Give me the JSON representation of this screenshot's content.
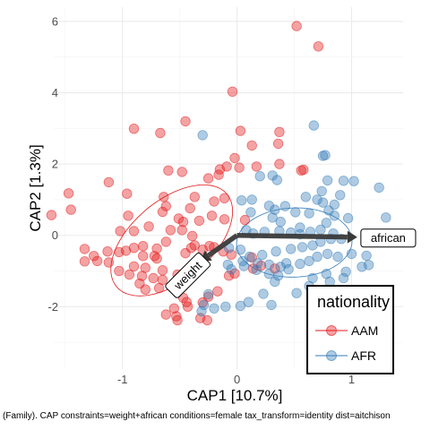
{
  "chart_data": {
    "type": "scatter",
    "title": "",
    "xlabel": "CAP1 [10.7%]",
    "ylabel": "CAP2 [1.3%]",
    "xlim": [
      -1.6,
      1.45
    ],
    "ylim": [
      -3.75,
      6.4
    ],
    "x_ticks": [
      -1,
      0,
      1
    ],
    "x_tick_labels": [
      "-1",
      "0",
      "1"
    ],
    "y_ticks": [
      -2,
      0,
      2,
      4,
      6
    ],
    "y_tick_labels": [
      "-2",
      "0",
      "2",
      "4",
      "6"
    ],
    "grid": true,
    "legend": {
      "title": "nationality",
      "placement": "right-bottom"
    },
    "series": [
      {
        "name": "AAM",
        "color": "#e41a1c",
        "points": [
          [
            0.52,
            5.87
          ],
          [
            0.71,
            5.3
          ],
          [
            -0.04,
            4.03
          ],
          [
            -0.9,
            2.99
          ],
          [
            -0.45,
            3.2
          ],
          [
            -0.67,
            2.87
          ],
          [
            0.03,
            2.93
          ],
          [
            0.37,
            2.9
          ],
          [
            0.36,
            2.57
          ],
          [
            0.13,
            2.52
          ],
          [
            -0.02,
            2.17
          ],
          [
            0.37,
            2.0
          ],
          [
            0.02,
            1.9
          ],
          [
            0.17,
            1.93
          ],
          [
            -0.15,
            1.85
          ],
          [
            -0.16,
            1.7
          ],
          [
            -0.48,
            1.78
          ],
          [
            0.58,
            1.84
          ],
          [
            0.56,
            1.82
          ],
          [
            -0.09,
            1.93
          ],
          [
            -0.6,
            1.82
          ],
          [
            -0.25,
            1.6
          ],
          [
            -1.12,
            1.49
          ],
          [
            -0.96,
            1.17
          ],
          [
            -1.47,
            1.18
          ],
          [
            -1.45,
            0.72
          ],
          [
            -1.62,
            0.57
          ],
          [
            -0.64,
            1.08
          ],
          [
            -0.95,
            0.55
          ],
          [
            -0.37,
            1.08
          ],
          [
            -0.11,
            1.04
          ],
          [
            -0.2,
            0.95
          ],
          [
            -0.62,
            0.82
          ],
          [
            -0.41,
            0.76
          ],
          [
            -0.65,
            0.66
          ],
          [
            -0.51,
            0.47
          ],
          [
            -0.47,
            0.38
          ],
          [
            -0.22,
            0.55
          ],
          [
            -0.11,
            0.45
          ],
          [
            0.07,
            0.43
          ],
          [
            -0.33,
            0.41
          ],
          [
            -0.77,
            0.25
          ],
          [
            -0.9,
            0.12
          ],
          [
            -1.02,
            0.12
          ],
          [
            -0.58,
            0.15
          ],
          [
            -0.48,
            0.15
          ],
          [
            -0.39,
            -0.02
          ],
          [
            -0.62,
            -0.18
          ],
          [
            -1.33,
            -0.38
          ],
          [
            -1.25,
            -0.58
          ],
          [
            -1.13,
            -0.45
          ],
          [
            -1.03,
            -0.47
          ],
          [
            -0.97,
            -0.43
          ],
          [
            -0.9,
            -0.35
          ],
          [
            -0.82,
            -0.3
          ],
          [
            -0.7,
            -0.37
          ],
          [
            -0.45,
            -0.5
          ],
          [
            -0.4,
            -0.35
          ],
          [
            -0.3,
            -0.4
          ],
          [
            -0.37,
            -0.28
          ],
          [
            -0.24,
            -0.3
          ],
          [
            -0.2,
            -0.33
          ],
          [
            -0.12,
            -0.45
          ],
          [
            -0.05,
            -0.54
          ],
          [
            -0.82,
            -0.58
          ],
          [
            -0.72,
            -0.58
          ],
          [
            -0.7,
            -0.65
          ],
          [
            -1.22,
            -0.72
          ],
          [
            -1.12,
            -0.76
          ],
          [
            -0.9,
            -0.87
          ],
          [
            -0.8,
            -0.91
          ],
          [
            -0.65,
            -0.98
          ],
          [
            -0.52,
            -1.1
          ],
          [
            -1.03,
            -1.0
          ],
          [
            -0.94,
            -1.1
          ],
          [
            -0.83,
            -1.14
          ],
          [
            -0.73,
            -1.2
          ],
          [
            -0.65,
            -1.25
          ],
          [
            -0.85,
            -1.35
          ],
          [
            -0.8,
            -1.52
          ],
          [
            -0.68,
            -1.48
          ],
          [
            -0.47,
            -1.75
          ],
          [
            -0.55,
            -2.05
          ],
          [
            -0.43,
            -2.0
          ],
          [
            -0.25,
            -1.72
          ],
          [
            -0.3,
            -1.88
          ],
          [
            -0.17,
            -1.57
          ],
          [
            -0.02,
            -1.07
          ],
          [
            -0.07,
            -1.13
          ],
          [
            0.13,
            -0.62
          ],
          [
            0.21,
            -0.85
          ],
          [
            0.33,
            -0.93
          ],
          [
            0.14,
            -0.93
          ],
          [
            -0.62,
            -2.22
          ],
          [
            -0.53,
            -2.27
          ],
          [
            -0.52,
            -2.38
          ],
          [
            -0.32,
            -2.32
          ],
          [
            -0.26,
            -2.38
          ],
          [
            -0.44,
            -1.87
          ],
          [
            -1.33,
            -0.73
          ]
        ]
      },
      {
        "name": "AFR",
        "color": "#377eb8",
        "points": [
          [
            0.67,
            3.08
          ],
          [
            -0.3,
            2.81
          ],
          [
            0.75,
            2.23
          ],
          [
            0.77,
            2.25
          ],
          [
            0.31,
            1.68
          ],
          [
            0.2,
            1.66
          ],
          [
            0.35,
            1.55
          ],
          [
            0.79,
            1.54
          ],
          [
            0.93,
            1.53
          ],
          [
            1.02,
            1.52
          ],
          [
            1.24,
            1.34
          ],
          [
            0.74,
            1.24
          ],
          [
            0.9,
            1.13
          ],
          [
            0.6,
            1.08
          ],
          [
            0.7,
            1.0
          ],
          [
            0.75,
            0.92
          ],
          [
            0.85,
            0.86
          ],
          [
            0.42,
            0.82
          ],
          [
            0.28,
            0.83
          ],
          [
            0.33,
            0.72
          ],
          [
            0.13,
            1.0
          ],
          [
            0.04,
            0.98
          ],
          [
            0.12,
            0.65
          ],
          [
            0.31,
            0.5
          ],
          [
            0.38,
            0.38
          ],
          [
            0.51,
            0.65
          ],
          [
            0.63,
            0.62
          ],
          [
            0.85,
            0.55
          ],
          [
            0.97,
            0.48
          ],
          [
            0.78,
            0.35
          ],
          [
            1.3,
            0.5
          ],
          [
            0.08,
            0.15
          ],
          [
            0.14,
            0.05
          ],
          [
            0.24,
            0.1
          ],
          [
            0.37,
            0.12
          ],
          [
            0.47,
            0.08
          ],
          [
            0.55,
            0.03
          ],
          [
            0.64,
            0.1
          ],
          [
            0.73,
            0.16
          ],
          [
            0.84,
            0.05
          ],
          [
            0.82,
            -0.1
          ],
          [
            0.91,
            -0.1
          ],
          [
            0.73,
            -0.18
          ],
          [
            0.66,
            -0.28
          ],
          [
            0.57,
            -0.33
          ],
          [
            0.47,
            -0.38
          ],
          [
            0.34,
            -0.45
          ],
          [
            0.22,
            -0.55
          ],
          [
            0.11,
            -0.6
          ],
          [
            0.03,
            -0.4
          ],
          [
            -0.07,
            -0.35
          ],
          [
            0.05,
            -0.72
          ],
          [
            0.18,
            -0.78
          ],
          [
            0.28,
            -0.82
          ],
          [
            0.38,
            -0.88
          ],
          [
            0.45,
            -0.95
          ],
          [
            0.55,
            -0.8
          ],
          [
            0.63,
            -0.72
          ],
          [
            0.7,
            -0.6
          ],
          [
            0.79,
            -0.52
          ],
          [
            0.88,
            -0.6
          ],
          [
            1.0,
            -0.52
          ],
          [
            0.95,
            -1.02
          ],
          [
            0.78,
            -1.08
          ],
          [
            0.66,
            -1.2
          ],
          [
            0.81,
            -1.3
          ],
          [
            0.93,
            -1.2
          ],
          [
            1.09,
            -0.88
          ],
          [
            1.15,
            -0.83
          ],
          [
            1.13,
            -0.57
          ],
          [
            0.36,
            -1.13
          ],
          [
            0.28,
            -1.08
          ],
          [
            0.17,
            -0.97
          ],
          [
            0.06,
            -0.86
          ],
          [
            -0.08,
            -0.82
          ],
          [
            -0.05,
            -0.95
          ],
          [
            -0.25,
            -1.65
          ],
          [
            -0.29,
            -1.95
          ],
          [
            -0.31,
            -2.13
          ],
          [
            -0.2,
            -2.05
          ],
          [
            -0.1,
            -2.0
          ],
          [
            0.03,
            -1.98
          ],
          [
            0.1,
            -1.87
          ],
          [
            0.23,
            -1.64
          ],
          [
            0.3,
            -1.95
          ],
          [
            0.52,
            -1.62
          ],
          [
            0.63,
            -1.42
          ],
          [
            0.33,
            -1.3
          ],
          [
            0.43,
            -0.78
          ],
          [
            0.8,
            0.7
          ],
          [
            0.55,
            0.22
          ]
        ]
      }
    ],
    "ellipses": [
      {
        "name": "AAM",
        "center": [
          -0.57,
          -0.14
        ],
        "a": 2.02,
        "b": 1.12,
        "angle_deg": 40
      },
      {
        "name": "AFR",
        "center": [
          0.5,
          -0.2
        ],
        "a": 1.62,
        "b": 0.97,
        "angle_deg": 2
      }
    ],
    "arrows": [
      {
        "label": "african",
        "x": 1.05,
        "y": -0.05
      },
      {
        "label": "weight",
        "x": -0.32,
        "y": -0.72
      }
    ]
  },
  "legend": {
    "title": "nationality",
    "items": [
      {
        "label": "AAM",
        "color": "#e41a1c"
      },
      {
        "label": "AFR",
        "color": "#377eb8"
      }
    ]
  },
  "caption": "(Family). CAP constraints=weight+african conditions=female tax_transform=identity dist=aitchison"
}
